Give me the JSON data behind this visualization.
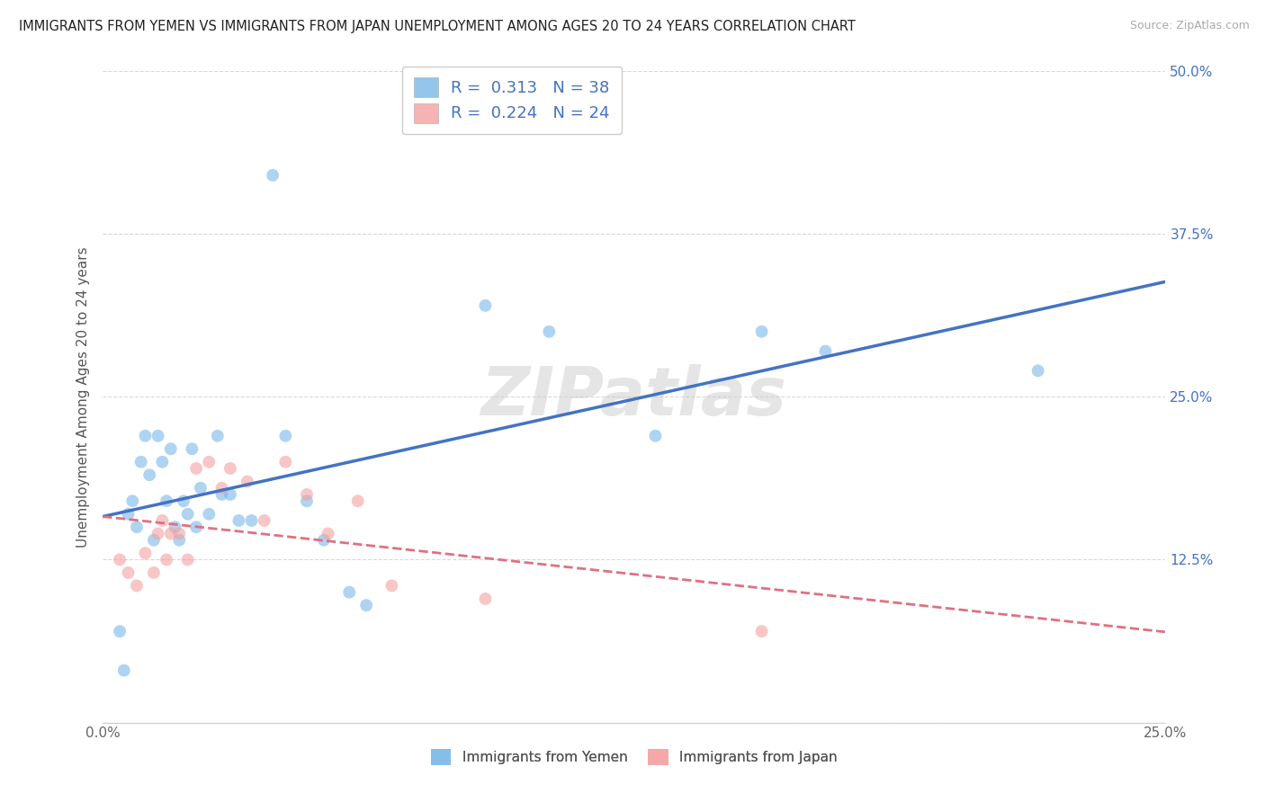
{
  "title": "IMMIGRANTS FROM YEMEN VS IMMIGRANTS FROM JAPAN UNEMPLOYMENT AMONG AGES 20 TO 24 YEARS CORRELATION CHART",
  "source": "Source: ZipAtlas.com",
  "ylabel": "Unemployment Among Ages 20 to 24 years",
  "xlim": [
    0.0,
    0.25
  ],
  "ylim": [
    0.0,
    0.5
  ],
  "xtick_positions": [
    0.0,
    0.05,
    0.1,
    0.15,
    0.2,
    0.25
  ],
  "xtick_labels": [
    "0.0%",
    "",
    "",
    "",
    "",
    "25.0%"
  ],
  "ytick_positions": [
    0.0,
    0.125,
    0.25,
    0.375,
    0.5
  ],
  "ytick_labels": [
    "",
    "12.5%",
    "25.0%",
    "37.5%",
    "50.0%"
  ],
  "legend1_r": "0.313",
  "legend1_n": "38",
  "legend2_r": "0.224",
  "legend2_n": "24",
  "legend_bottom_label1": "Immigrants from Yemen",
  "legend_bottom_label2": "Immigrants from Japan",
  "color_yemen": "#7ab8e8",
  "color_japan": "#f4a0a0",
  "color_line_yemen": "#4472c4",
  "color_line_japan": "#e07080",
  "yemen_x": [
    0.004,
    0.005,
    0.006,
    0.007,
    0.008,
    0.009,
    0.01,
    0.011,
    0.012,
    0.013,
    0.014,
    0.015,
    0.016,
    0.017,
    0.018,
    0.019,
    0.02,
    0.021,
    0.022,
    0.023,
    0.025,
    0.027,
    0.028,
    0.03,
    0.032,
    0.035,
    0.04,
    0.043,
    0.048,
    0.052,
    0.058,
    0.062,
    0.09,
    0.105,
    0.13,
    0.155,
    0.17,
    0.22
  ],
  "yemen_y": [
    0.07,
    0.04,
    0.16,
    0.17,
    0.15,
    0.2,
    0.22,
    0.19,
    0.14,
    0.22,
    0.2,
    0.17,
    0.21,
    0.15,
    0.14,
    0.17,
    0.16,
    0.21,
    0.15,
    0.18,
    0.16,
    0.22,
    0.175,
    0.175,
    0.155,
    0.155,
    0.42,
    0.22,
    0.17,
    0.14,
    0.1,
    0.09,
    0.32,
    0.3,
    0.22,
    0.3,
    0.285,
    0.27
  ],
  "japan_x": [
    0.004,
    0.006,
    0.008,
    0.01,
    0.012,
    0.013,
    0.014,
    0.015,
    0.016,
    0.018,
    0.02,
    0.022,
    0.025,
    0.028,
    0.03,
    0.034,
    0.038,
    0.043,
    0.048,
    0.053,
    0.06,
    0.068,
    0.09,
    0.155
  ],
  "japan_y": [
    0.125,
    0.115,
    0.105,
    0.13,
    0.115,
    0.145,
    0.155,
    0.125,
    0.145,
    0.145,
    0.125,
    0.195,
    0.2,
    0.18,
    0.195,
    0.185,
    0.155,
    0.2,
    0.175,
    0.145,
    0.17,
    0.105,
    0.095,
    0.07
  ],
  "watermark": "ZIPatlas",
  "background_color": "#ffffff",
  "grid_color": "#d8d8d8"
}
